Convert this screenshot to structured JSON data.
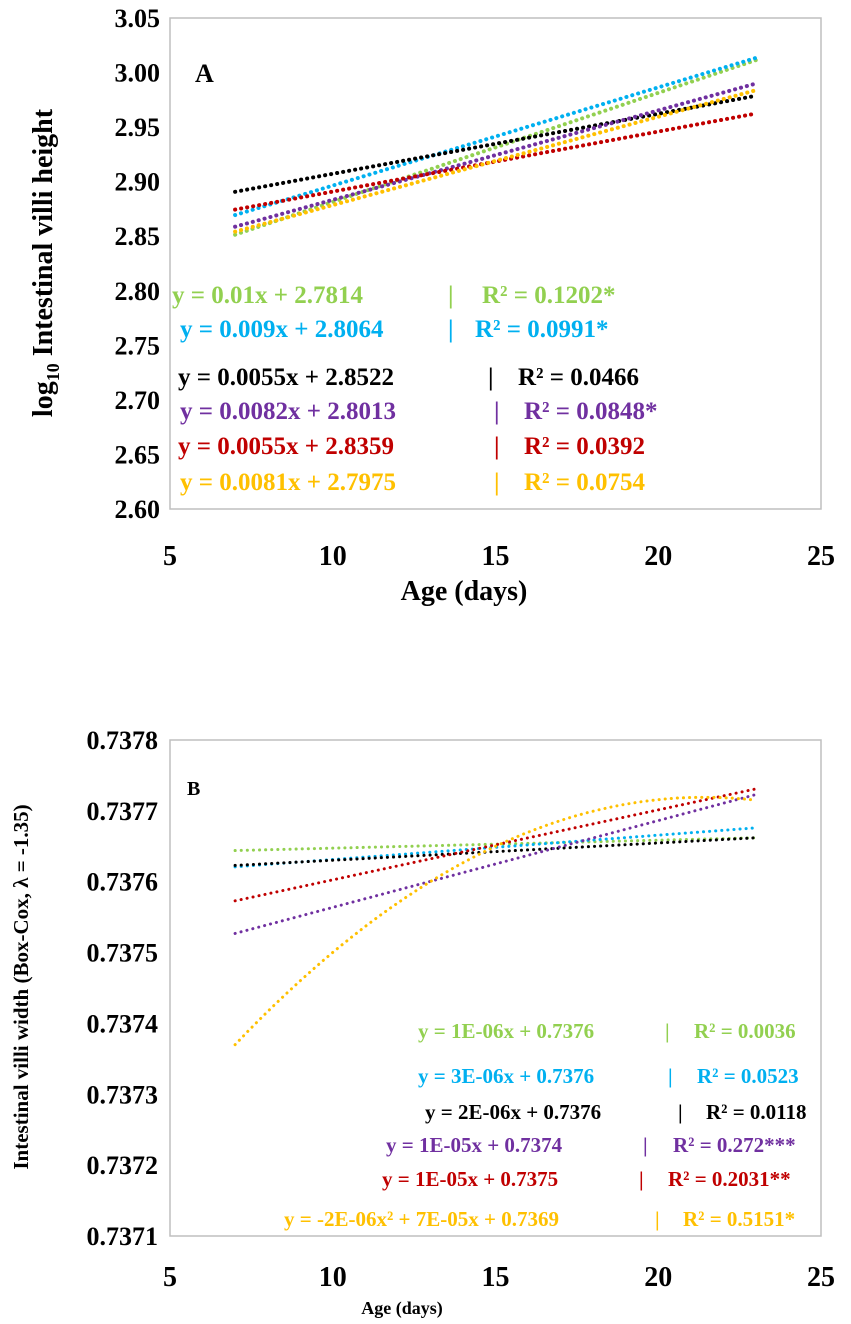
{
  "chart_data": [
    {
      "type": "line",
      "panel_label": "A",
      "xlabel": "Age (days)",
      "ylabel_prefix": "log",
      "ylabel_subscript": "10",
      "ylabel_suffix": " Intestinal villi height",
      "xlim": [
        5,
        25
      ],
      "ylim": [
        2.6,
        3.05
      ],
      "x_ticks": [
        "5",
        "10",
        "15",
        "20",
        "25"
      ],
      "y_ticks": [
        "3.05",
        "3.00",
        "2.95",
        "2.90",
        "2.85",
        "2.80",
        "2.75",
        "2.70",
        "2.65",
        "2.60"
      ],
      "x_range": [
        7,
        23
      ],
      "series": [
        {
          "name": "green",
          "color": "#92d050",
          "slope": 0.01,
          "intercept": 2.7814,
          "equation": "y = 0.01x + 2.7814",
          "sep": "|",
          "r2": "R² = 0.1202*"
        },
        {
          "name": "blue",
          "color": "#00b0f0",
          "slope": 0.009,
          "intercept": 2.8064,
          "equation": "y = 0.009x + 2.8064",
          "sep": "|",
          "r2": "R² = 0.0991*"
        },
        {
          "name": "black",
          "color": "#000000",
          "slope": 0.0055,
          "intercept": 2.8522,
          "equation": "y = 0.0055x + 2.8522",
          "sep": "|",
          "r2": "R² = 0.0466"
        },
        {
          "name": "purple",
          "color": "#7030a0",
          "slope": 0.0082,
          "intercept": 2.8013,
          "equation": "y = 0.0082x + 2.8013",
          "sep": "|",
          "r2": "R² = 0.0848*"
        },
        {
          "name": "red",
          "color": "#c00000",
          "slope": 0.0055,
          "intercept": 2.8359,
          "equation": "y = 0.0055x + 2.8359",
          "sep": "|",
          "r2": "R² = 0.0392"
        },
        {
          "name": "orange",
          "color": "#ffc000",
          "slope": 0.0081,
          "intercept": 2.7975,
          "equation": "y = 0.0081x + 2.7975",
          "sep": "|",
          "r2": "R² = 0.0754"
        }
      ]
    },
    {
      "type": "line",
      "panel_label": "B",
      "xlabel": "Age (days)",
      "ylabel": "Intestinal villi width (Box-Cox, λ = -1.35)",
      "xlim": [
        5,
        25
      ],
      "ylim": [
        0.7371,
        0.7378
      ],
      "x_ticks": [
        "5",
        "10",
        "15",
        "20",
        "25"
      ],
      "y_ticks": [
        "0.7378",
        "0.7377",
        "0.7376",
        "0.7375",
        "0.7374",
        "0.7373",
        "0.7372",
        "0.7371"
      ],
      "x_range": [
        7,
        23
      ],
      "series": [
        {
          "name": "green",
          "color": "#92d050",
          "y_start": 0.737644,
          "y_end": 0.737662,
          "equation": "y = 1E-06x + 0.7376",
          "sep": "|",
          "r2": "R² = 0.0036"
        },
        {
          "name": "blue",
          "color": "#00b0f0",
          "y_start": 0.737621,
          "y_end": 0.737676,
          "equation": "y = 3E-06x + 0.7376",
          "sep": "|",
          "r2": "R² = 0.0523"
        },
        {
          "name": "black",
          "color": "#000000",
          "y_start": 0.737623,
          "y_end": 0.737662,
          "equation": "y = 2E-06x + 0.7376",
          "sep": "|",
          "r2": "R² = 0.0118"
        },
        {
          "name": "purple",
          "color": "#7030a0",
          "y_start": 0.737527,
          "y_end": 0.737723,
          "equation": "y = 1E-05x + 0.7374",
          "sep": "|",
          "r2": "R² = 0.272***"
        },
        {
          "name": "red",
          "color": "#c00000",
          "y_start": 0.737573,
          "y_end": 0.737731,
          "equation": "y = 1E-05x + 0.7375",
          "sep": "|",
          "r2": "R² = 0.2031**"
        },
        {
          "name": "orange",
          "color": "#ffc000",
          "quadratic": [
            0.73737,
            0.73765,
            0.737715
          ],
          "quadratic_x": [
            7,
            15,
            23
          ],
          "equation": "y = -2E-06x² + 7E-05x + 0.7369",
          "sep": "|",
          "r2": "R² = 0.5151*"
        }
      ]
    }
  ]
}
